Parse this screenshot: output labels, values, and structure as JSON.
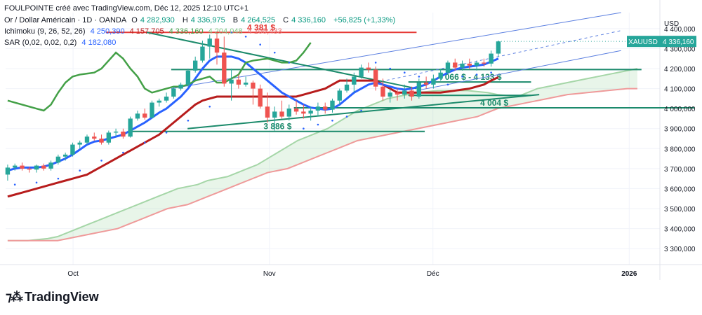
{
  "header": {
    "text": "FOULPOINTE créé avec TradingView.com, Déc 12, 2025 12:10 UTC+1"
  },
  "legend": {
    "symbol_line": {
      "name": "Or / Dollar Américain · 1D · OANDA",
      "o_label": "O",
      "o": "4 282,930",
      "h_label": "H",
      "h": "4 336,975",
      "b_label": "B",
      "b": "4 264,525",
      "c_label": "C",
      "c": "4 336,160",
      "change": "+56,825 (+1,33%)"
    },
    "ichimoku_line": {
      "name": "Ichimoku (9, 26, 52, 26)",
      "values": [
        "4 250,390",
        "4 157,705",
        "4 336,160",
        "4 204,048",
        "4 100,433"
      ]
    },
    "sar_line": {
      "name": "SAR (0,02, 0,02, 0,2)",
      "value": "4 182,080"
    }
  },
  "axis": {
    "currency": "USD",
    "price_tag_symbol": "XAUUSD",
    "price_tag_value": "4 336,160"
  },
  "logo": {
    "text": "TradingView"
  },
  "colors": {
    "up": "#26a69a",
    "down": "#ef5350",
    "tenkan": "#2962ff",
    "kijun": "#b71c1c",
    "chikou": "#43a047",
    "senkou_a": "#a5d6a7",
    "senkou_b": "#ef9a9a",
    "support": "#1b8a6b",
    "resistance": "#e53935",
    "channel": "#5b7fe0",
    "sar": "#2962ff",
    "price_tag": "#26a69a"
  },
  "chart_data": {
    "type": "candlestick",
    "title": "Or / Dollar Américain · 1D · OANDA",
    "ylabel": "USD",
    "ylim": [
      3220000,
      4480000
    ],
    "y_ticks": [
      3300000,
      3400000,
      3500000,
      3600000,
      3700000,
      3800000,
      3900000,
      4000000,
      4100000,
      4200000,
      4300000,
      4400000
    ],
    "y_tick_labels": [
      "3 300,000",
      "3 400,000",
      "3 500,000",
      "3 600,000",
      "3 700,000",
      "3 800,000",
      "3 900,000",
      "4 000,000",
      "4 100,000",
      "4 200,000",
      "4 300,000",
      "4 400,000"
    ],
    "x_ticks": [
      {
        "label": "Oct",
        "index": 16
      },
      {
        "label": "Nov",
        "index": 64
      },
      {
        "label": "Déc",
        "index": 104
      },
      {
        "label": "2026",
        "index": 152
      }
    ],
    "grid": true,
    "candles": [
      {
        "o": 3670000,
        "h": 3720000,
        "l": 3640000,
        "c": 3705000
      },
      {
        "o": 3705000,
        "h": 3725000,
        "l": 3690000,
        "c": 3715000
      },
      {
        "o": 3715000,
        "h": 3730000,
        "l": 3690000,
        "c": 3700000
      },
      {
        "o": 3700000,
        "h": 3710000,
        "l": 3680000,
        "c": 3695000
      },
      {
        "o": 3695000,
        "h": 3720000,
        "l": 3680000,
        "c": 3715000
      },
      {
        "o": 3715000,
        "h": 3725000,
        "l": 3690000,
        "c": 3700000
      },
      {
        "o": 3700000,
        "h": 3740000,
        "l": 3690000,
        "c": 3730000
      },
      {
        "o": 3730000,
        "h": 3770000,
        "l": 3720000,
        "c": 3760000
      },
      {
        "o": 3760000,
        "h": 3780000,
        "l": 3740000,
        "c": 3770000
      },
      {
        "o": 3770000,
        "h": 3830000,
        "l": 3760000,
        "c": 3820000
      },
      {
        "o": 3820000,
        "h": 3840000,
        "l": 3800000,
        "c": 3830000
      },
      {
        "o": 3830000,
        "h": 3870000,
        "l": 3820000,
        "c": 3860000
      },
      {
        "o": 3860000,
        "h": 3880000,
        "l": 3840000,
        "c": 3850000
      },
      {
        "o": 3850000,
        "h": 3870000,
        "l": 3820000,
        "c": 3830000
      },
      {
        "o": 3830000,
        "h": 3890000,
        "l": 3820000,
        "c": 3880000
      },
      {
        "o": 3880000,
        "h": 3900000,
        "l": 3860000,
        "c": 3885000
      },
      {
        "o": 3885000,
        "h": 3900000,
        "l": 3850000,
        "c": 3860000
      },
      {
        "o": 3860000,
        "h": 3960000,
        "l": 3855000,
        "c": 3950000
      },
      {
        "o": 3950000,
        "h": 3990000,
        "l": 3940000,
        "c": 3975000
      },
      {
        "o": 3975000,
        "h": 4000000,
        "l": 3945000,
        "c": 3955000
      },
      {
        "o": 3955000,
        "h": 4040000,
        "l": 3950000,
        "c": 4030000
      },
      {
        "o": 4030000,
        "h": 4050000,
        "l": 4010000,
        "c": 4040000
      },
      {
        "o": 4040000,
        "h": 4080000,
        "l": 4030000,
        "c": 4060000
      },
      {
        "o": 4060000,
        "h": 4110000,
        "l": 4050000,
        "c": 4100000
      },
      {
        "o": 4100000,
        "h": 4130000,
        "l": 4090000,
        "c": 4120000
      },
      {
        "o": 4120000,
        "h": 4200000,
        "l": 4110000,
        "c": 4190000
      },
      {
        "o": 4190000,
        "h": 4260000,
        "l": 4180000,
        "c": 4240000
      },
      {
        "o": 4240000,
        "h": 4340000,
        "l": 4230000,
        "c": 4310000
      },
      {
        "o": 4310000,
        "h": 4370000,
        "l": 4250000,
        "c": 4350000
      },
      {
        "o": 4350000,
        "h": 4380000,
        "l": 4220000,
        "c": 4280000
      },
      {
        "o": 4280000,
        "h": 4360000,
        "l": 4110000,
        "c": 4125000
      },
      {
        "o": 4125000,
        "h": 4200000,
        "l": 4040000,
        "c": 4145000
      },
      {
        "o": 4145000,
        "h": 4170000,
        "l": 4100000,
        "c": 4120000
      },
      {
        "o": 4120000,
        "h": 4160000,
        "l": 4110000,
        "c": 4130000
      },
      {
        "o": 4130000,
        "h": 4140000,
        "l": 4020000,
        "c": 4100000
      },
      {
        "o": 4100000,
        "h": 4120000,
        "l": 4000000,
        "c": 4010000
      },
      {
        "o": 4010000,
        "h": 4080000,
        "l": 3930000,
        "c": 3955000
      },
      {
        "o": 3955000,
        "h": 4010000,
        "l": 3890000,
        "c": 3985000
      },
      {
        "o": 3985000,
        "h": 4040000,
        "l": 3950000,
        "c": 3960000
      },
      {
        "o": 3960000,
        "h": 4020000,
        "l": 3940000,
        "c": 4000000
      },
      {
        "o": 4000000,
        "h": 4040000,
        "l": 3970000,
        "c": 3985000
      },
      {
        "o": 3985000,
        "h": 4020000,
        "l": 3950000,
        "c": 3975000
      },
      {
        "o": 3975000,
        "h": 4010000,
        "l": 3940000,
        "c": 3990000
      },
      {
        "o": 3990000,
        "h": 4030000,
        "l": 3960000,
        "c": 4010000
      },
      {
        "o": 4010000,
        "h": 4030000,
        "l": 3975000,
        "c": 3995000
      },
      {
        "o": 3995000,
        "h": 4050000,
        "l": 3980000,
        "c": 4040000
      },
      {
        "o": 4040000,
        "h": 4100000,
        "l": 4020000,
        "c": 4090000
      },
      {
        "o": 4090000,
        "h": 4150000,
        "l": 4080000,
        "c": 4120000
      },
      {
        "o": 4120000,
        "h": 4180000,
        "l": 4080000,
        "c": 4160000
      },
      {
        "o": 4160000,
        "h": 4220000,
        "l": 4150000,
        "c": 4205000
      },
      {
        "o": 4205000,
        "h": 4230000,
        "l": 4180000,
        "c": 4195000
      },
      {
        "o": 4195000,
        "h": 4210000,
        "l": 4090000,
        "c": 4110000
      },
      {
        "o": 4110000,
        "h": 4150000,
        "l": 4040000,
        "c": 4060000
      },
      {
        "o": 4060000,
        "h": 4100000,
        "l": 4030000,
        "c": 4080000
      },
      {
        "o": 4080000,
        "h": 4100000,
        "l": 4040000,
        "c": 4070000
      },
      {
        "o": 4070000,
        "h": 4120000,
        "l": 4050000,
        "c": 4090000
      },
      {
        "o": 4090000,
        "h": 4110000,
        "l": 4040000,
        "c": 4060000
      },
      {
        "o": 4060000,
        "h": 4150000,
        "l": 4050000,
        "c": 4130000
      },
      {
        "o": 4130000,
        "h": 4160000,
        "l": 4100000,
        "c": 4120000
      },
      {
        "o": 4120000,
        "h": 4170000,
        "l": 4100000,
        "c": 4150000
      },
      {
        "o": 4150000,
        "h": 4200000,
        "l": 4140000,
        "c": 4180000
      },
      {
        "o": 4180000,
        "h": 4240000,
        "l": 4170000,
        "c": 4230000
      },
      {
        "o": 4230000,
        "h": 4250000,
        "l": 4190000,
        "c": 4205000
      },
      {
        "o": 4205000,
        "h": 4240000,
        "l": 4190000,
        "c": 4225000
      },
      {
        "o": 4225000,
        "h": 4250000,
        "l": 4200000,
        "c": 4215000
      },
      {
        "o": 4215000,
        "h": 4240000,
        "l": 4190000,
        "c": 4230000
      },
      {
        "o": 4230000,
        "h": 4250000,
        "l": 4210000,
        "c": 4225000
      },
      {
        "o": 4225000,
        "h": 4290000,
        "l": 4210000,
        "c": 4275000
      },
      {
        "o": 4275000,
        "h": 4340000,
        "l": 4260000,
        "c": 4336000
      }
    ],
    "tenkan": [
      3690000,
      3700000,
      3705000,
      3705000,
      3705000,
      3710000,
      3720000,
      3735000,
      3750000,
      3770000,
      3795000,
      3820000,
      3835000,
      3840000,
      3850000,
      3860000,
      3870000,
      3890000,
      3910000,
      3930000,
      3955000,
      3980000,
      4000000,
      4030000,
      4060000,
      4100000,
      4150000,
      4200000,
      4240000,
      4260000,
      4260000,
      4260000,
      4250000,
      4230000,
      4200000,
      4170000,
      4140000,
      4110000,
      4080000,
      4060000,
      4040000,
      4020000,
      4005000,
      4000000,
      3995000,
      4000000,
      4020000,
      4050000,
      4080000,
      4100000,
      4120000,
      4130000,
      4120000,
      4110000,
      4100000,
      4095000,
      4100000,
      4110000,
      4120000,
      4140000,
      4160000,
      4180000,
      4195000,
      4205000,
      4210000,
      4215000,
      4220000,
      4235000,
      4250000
    ],
    "kijun": [
      3560000,
      3570000,
      3580000,
      3590000,
      3600000,
      3610000,
      3620000,
      3630000,
      3640000,
      3650000,
      3660000,
      3670000,
      3690000,
      3710000,
      3730000,
      3750000,
      3770000,
      3790000,
      3810000,
      3830000,
      3850000,
      3870000,
      3900000,
      3930000,
      3960000,
      3990000,
      4020000,
      4040000,
      4050000,
      4060000,
      4060000,
      4060000,
      4060000,
      4060000,
      4060000,
      4060000,
      4060000,
      4060000,
      4060000,
      4060000,
      4060000,
      4070000,
      4080000,
      4090000,
      4100000,
      4120000,
      4140000,
      4140000,
      4140000,
      4140000,
      4140000,
      4140000,
      4120000,
      4100000,
      4080000,
      4080000,
      4080000,
      4080000,
      4080000,
      4080000,
      4080000,
      4085000,
      4090000,
      4095000,
      4100000,
      4110000,
      4120000,
      4140000,
      4157000
    ],
    "chikou": [
      4040000,
      4030000,
      4020000,
      4010000,
      4000000,
      3990000,
      4020000,
      4080000,
      4130000,
      4160000,
      4170000,
      4175000,
      4180000,
      4200000,
      4240000,
      4280000,
      4250000,
      4200000,
      4160000,
      4100000,
      4080000,
      4090000,
      4100000,
      4110000,
      4110000,
      4120000,
      4140000,
      4150000,
      4160000,
      4130000,
      4130000,
      4150000,
      4170000,
      4230000,
      4240000,
      4245000,
      4250000,
      4240000,
      4230000,
      4230000,
      4240000,
      4280000,
      4330000
    ],
    "senkou_a": [
      3340000,
      3340000,
      3340000,
      3345000,
      3350000,
      3360000,
      3380000,
      3400000,
      3420000,
      3440000,
      3460000,
      3480000,
      3500000,
      3520000,
      3540000,
      3560000,
      3580000,
      3600000,
      3610000,
      3620000,
      3640000,
      3650000,
      3660000,
      3680000,
      3700000,
      3720000,
      3750000,
      3780000,
      3810000,
      3840000,
      3860000,
      3880000,
      3900000,
      3930000,
      3960000,
      3990000,
      4010000,
      4030000,
      4050000,
      4060000,
      4070000,
      4080000,
      4085000,
      4090000,
      4090000,
      4090000,
      4090000,
      4085000,
      4080000,
      4070000,
      4065000,
      4060000,
      4080000,
      4100000,
      4110000,
      4120000,
      4130000,
      4140000,
      4150000,
      4160000,
      4170000,
      4180000,
      4190000,
      4200000
    ],
    "senkou_b": [
      3340000,
      3340000,
      3340000,
      3340000,
      3340000,
      3340000,
      3350000,
      3360000,
      3370000,
      3380000,
      3390000,
      3400000,
      3420000,
      3440000,
      3460000,
      3480000,
      3500000,
      3510000,
      3520000,
      3540000,
      3560000,
      3580000,
      3600000,
      3620000,
      3640000,
      3660000,
      3680000,
      3690000,
      3700000,
      3720000,
      3740000,
      3760000,
      3780000,
      3800000,
      3820000,
      3840000,
      3850000,
      3860000,
      3870000,
      3880000,
      3890000,
      3900000,
      3910000,
      3920000,
      3930000,
      3940000,
      3950000,
      3960000,
      3980000,
      4000000,
      4010000,
      4020000,
      4030000,
      4040000,
      4050000,
      4060000,
      4070000,
      4075000,
      4080000,
      4085000,
      4090000,
      4095000,
      4100000,
      4100000
    ],
    "sar_points": [
      [
        1,
        3620000
      ],
      [
        4,
        3630000
      ],
      [
        7,
        3650000
      ],
      [
        10,
        3690000
      ],
      [
        13,
        3740000
      ],
      [
        16,
        3780000
      ],
      [
        19,
        3830000
      ],
      [
        22,
        3880000
      ],
      [
        25,
        3940000
      ],
      [
        28,
        4010000
      ],
      [
        31,
        4380000
      ],
      [
        33,
        4360000
      ],
      [
        35,
        4320000
      ],
      [
        37,
        4280000
      ],
      [
        39,
        4230000
      ],
      [
        41,
        3900000
      ],
      [
        43,
        3920000
      ],
      [
        45,
        3940000
      ],
      [
        47,
        3960000
      ],
      [
        49,
        3990000
      ],
      [
        51,
        4230000
      ],
      [
        53,
        4200000
      ],
      [
        55,
        4180000
      ],
      [
        57,
        4160000
      ],
      [
        59,
        4140000
      ],
      [
        61,
        4120000
      ],
      [
        63,
        4160000
      ],
      [
        65,
        4170000
      ],
      [
        67,
        4180000
      ]
    ],
    "levels": [
      {
        "value": 4381000,
        "label": "4 381 $",
        "color_key": "resistance",
        "from": 24,
        "to": 100
      },
      {
        "value": 4066000,
        "label": "4 066 $ - 4 133 $",
        "color_key": "support",
        "from": 98,
        "to": 128,
        "value2": 4133000
      },
      {
        "value": 4004000,
        "label": "4 004 $",
        "color_key": "support",
        "from": 70,
        "to": 168
      },
      {
        "value": 3886000,
        "label": "3 886 $",
        "color_key": "support",
        "from": 30,
        "to": 102
      }
    ],
    "level_support_4200": {
      "value": 4195000,
      "from": 40,
      "to": 155
    },
    "trendlines": [
      {
        "name": "descending-trend",
        "x1": 34,
        "y1": 4381000,
        "x2": 100,
        "y2": 4100000,
        "color_key": "support"
      },
      {
        "name": "ascending-trend",
        "x1": 44,
        "y1": 3900000,
        "x2": 130,
        "y2": 4070000,
        "color_key": "support"
      }
    ],
    "channel": [
      {
        "name": "channel-top",
        "x1": 40,
        "y1": 4100000,
        "x2": 150,
        "y2": 4480000,
        "dashed": false
      },
      {
        "name": "channel-mid",
        "x1": 90,
        "y1": 4130000,
        "x2": 150,
        "y2": 4390000,
        "dashed": true
      },
      {
        "name": "channel-bottom",
        "x1": 100,
        "y1": 4090000,
        "x2": 150,
        "y2": 4290000,
        "dashed": false
      }
    ]
  }
}
